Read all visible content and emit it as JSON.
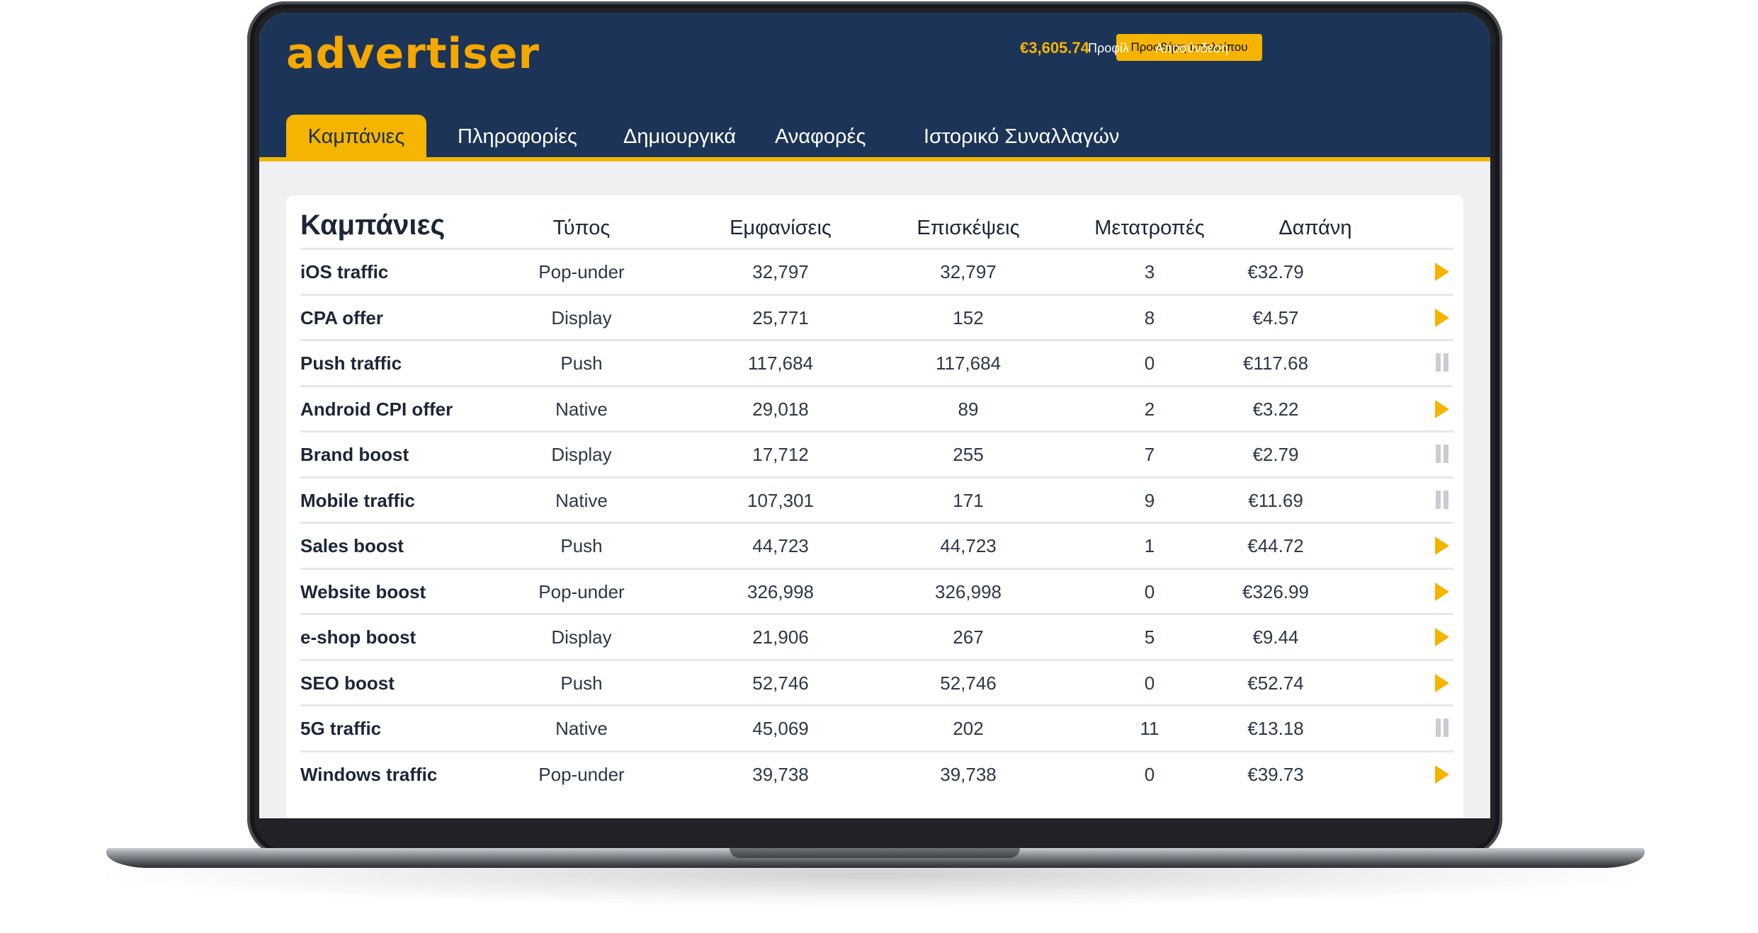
{
  "header": {
    "logo": "advertiser",
    "balance": "€3,605.74",
    "add_balance_label": "Προσθήκη υπολοίπου",
    "profile_label": "Προφίλ",
    "logout_label": "Αποσύνδεση"
  },
  "tabs": [
    {
      "label": "Καμπάνιες",
      "active": true
    },
    {
      "label": "Πληροφορίες",
      "active": false
    },
    {
      "label": "Δημιουργικά",
      "active": false
    },
    {
      "label": "Αναφορές",
      "active": false
    },
    {
      "label": "Ιστορικό Συναλλαγών",
      "active": false
    }
  ],
  "table": {
    "title": "Καμπάνιες",
    "columns": [
      "Τύπος",
      "Εμφανίσεις",
      "Επισκέψεις",
      "Μετατροπές",
      "Δαπάνη"
    ],
    "rows": [
      {
        "name": "iOS traffic",
        "type": "Pop-under",
        "impressions": "32,797",
        "visits": "32,797",
        "conversions": "3",
        "spend": "€32.79",
        "status": "playing"
      },
      {
        "name": "CPA offer",
        "type": "Display",
        "impressions": "25,771",
        "visits": "152",
        "conversions": "8",
        "spend": "€4.57",
        "status": "playing"
      },
      {
        "name": "Push traffic",
        "type": "Push",
        "impressions": "117,684",
        "visits": "117,684",
        "conversions": "0",
        "spend": "€117.68",
        "status": "paused"
      },
      {
        "name": "Android CPI offer",
        "type": "Native",
        "impressions": "29,018",
        "visits": "89",
        "conversions": "2",
        "spend": "€3.22",
        "status": "playing"
      },
      {
        "name": "Brand boost",
        "type": "Display",
        "impressions": "17,712",
        "visits": "255",
        "conversions": "7",
        "spend": "€2.79",
        "status": "paused"
      },
      {
        "name": "Mobile traffic",
        "type": "Native",
        "impressions": "107,301",
        "visits": "171",
        "conversions": "9",
        "spend": "€11.69",
        "status": "paused"
      },
      {
        "name": "Sales boost",
        "type": "Push",
        "impressions": "44,723",
        "visits": "44,723",
        "conversions": "1",
        "spend": "€44.72",
        "status": "playing"
      },
      {
        "name": "Website boost",
        "type": "Pop-under",
        "impressions": "326,998",
        "visits": "326,998",
        "conversions": "0",
        "spend": "€326.99",
        "status": "playing"
      },
      {
        "name": "e-shop boost",
        "type": "Display",
        "impressions": "21,906",
        "visits": "267",
        "conversions": "5",
        "spend": "€9.44",
        "status": "playing"
      },
      {
        "name": "SEO boost",
        "type": "Push",
        "impressions": "52,746",
        "visits": "52,746",
        "conversions": "0",
        "spend": "€52.74",
        "status": "playing"
      },
      {
        "name": "5G traffic",
        "type": "Native",
        "impressions": "45,069",
        "visits": "202",
        "conversions": "11",
        "spend": "€13.18",
        "status": "paused"
      },
      {
        "name": "Windows traffic",
        "type": "Pop-under",
        "impressions": "39,738",
        "visits": "39,738",
        "conversions": "0",
        "spend": "€39.73",
        "status": "playing"
      }
    ]
  },
  "colors": {
    "header_bg": "#1c3457",
    "accent": "#f5b400",
    "paused_icon": "#c9ccd0",
    "text_dark": "#1b2638"
  },
  "icons": {
    "playing": "play-icon",
    "paused": "pause-icon"
  }
}
